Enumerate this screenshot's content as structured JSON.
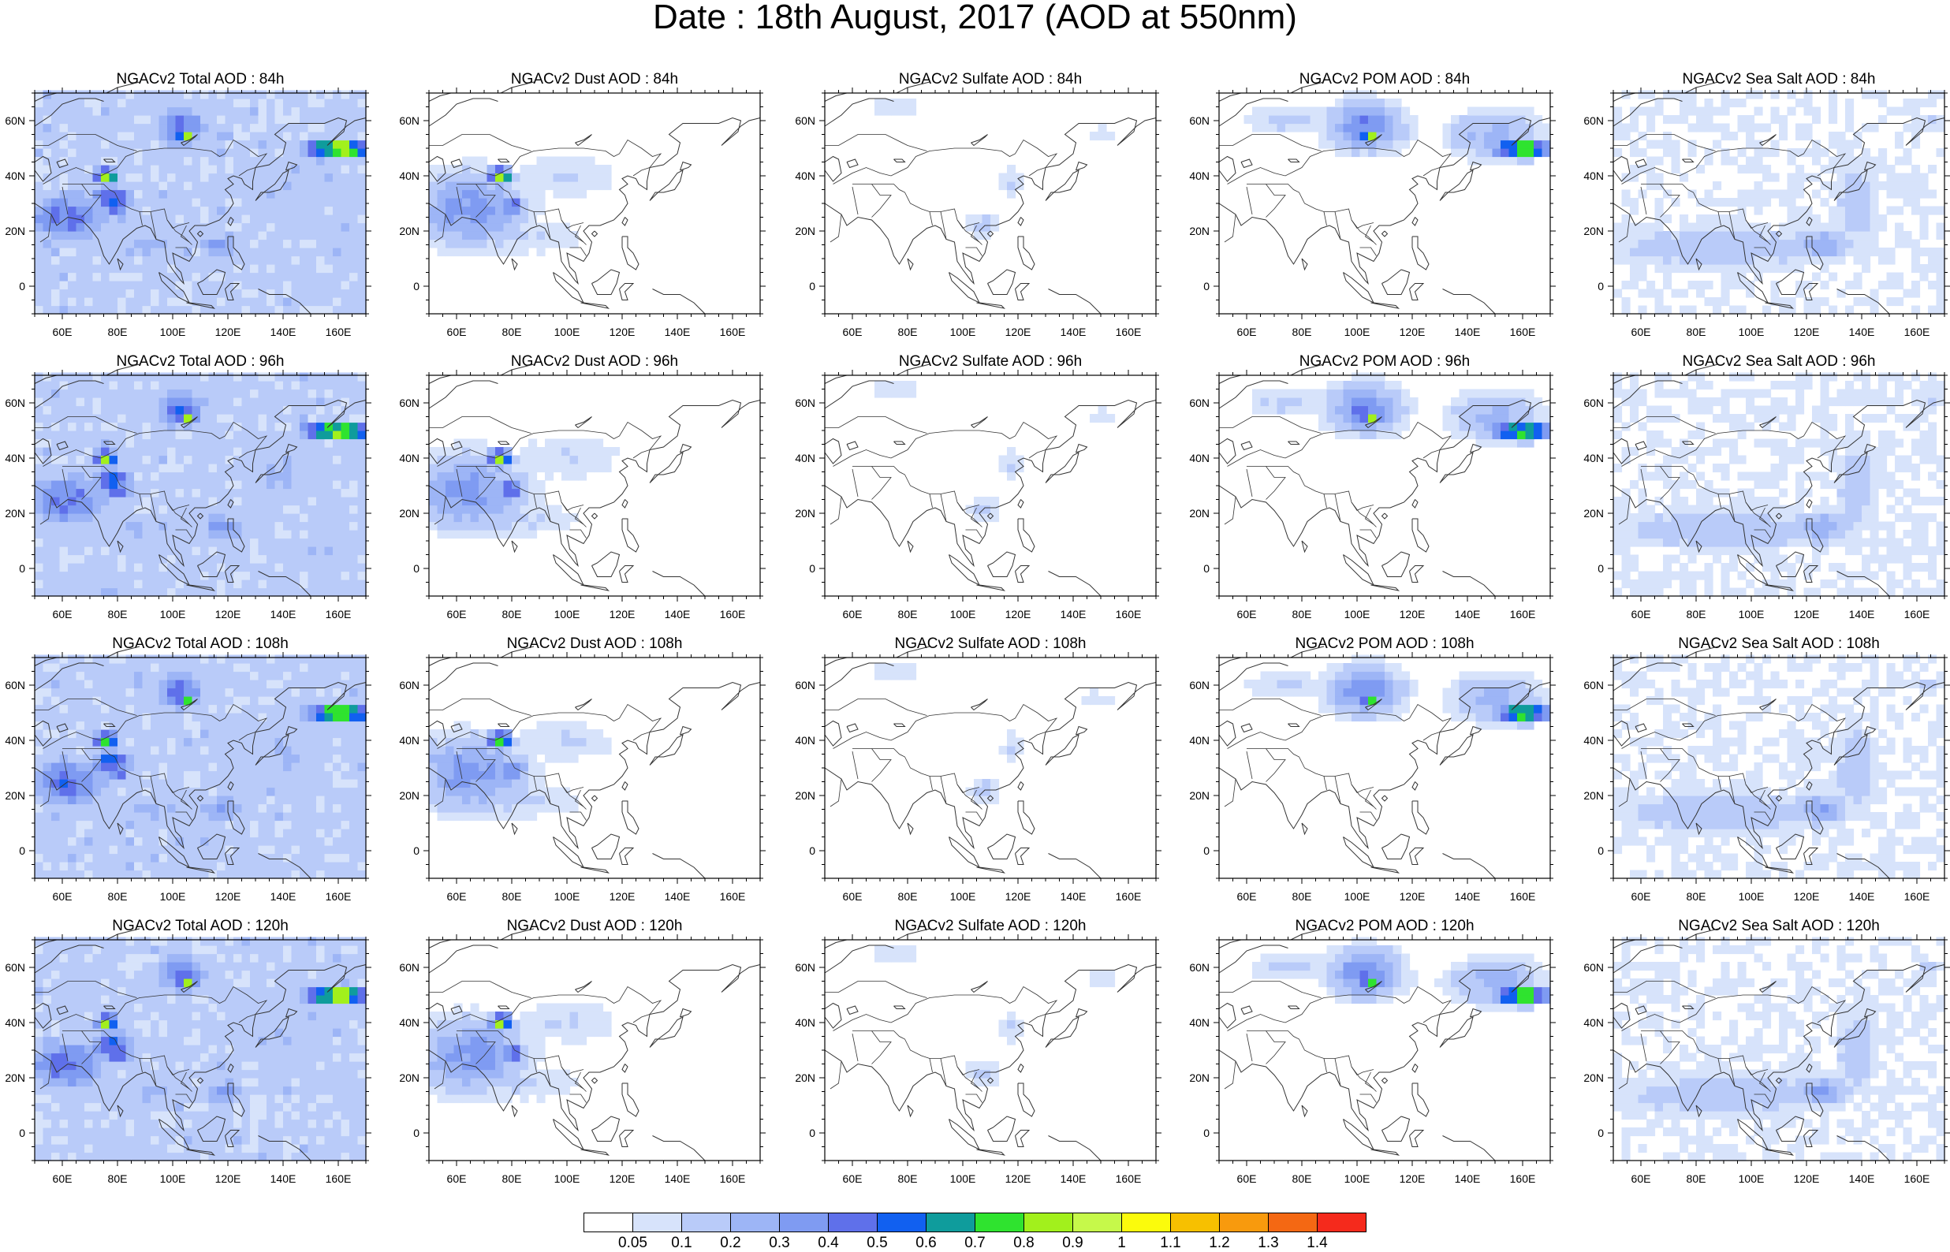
{
  "title": "Date : 18th August, 2017 (AOD at 550nm)",
  "columns": [
    {
      "variable": "Total",
      "base_level": 0.14,
      "colors_key": "total"
    },
    {
      "variable": "Dust",
      "base_level": 0.03,
      "colors_key": "dust"
    },
    {
      "variable": "Sulfate",
      "base_level": 0.01,
      "colors_key": "sulfate"
    },
    {
      "variable": "POM",
      "base_level": 0.02,
      "colors_key": "pom"
    },
    {
      "variable": "Sea Salt",
      "base_level": 0.05,
      "colors_key": "seasalt"
    }
  ],
  "panels": [
    {
      "title": "NGACv2 Total AOD : 84h"
    },
    {
      "title": "NGACv2 Dust AOD : 84h"
    },
    {
      "title": "NGACv2 Sulfate AOD : 84h"
    },
    {
      "title": "NGACv2 POM AOD : 84h"
    },
    {
      "title": "NGACv2 Sea Salt AOD : 84h"
    },
    {
      "title": "NGACv2 Total AOD : 96h"
    },
    {
      "title": "NGACv2 Dust AOD : 96h"
    },
    {
      "title": "NGACv2 Sulfate AOD : 96h"
    },
    {
      "title": "NGACv2 POM AOD : 96h"
    },
    {
      "title": "NGACv2 Sea Salt AOD : 96h"
    },
    {
      "title": "NGACv2 Total AOD : 108h"
    },
    {
      "title": "NGACv2 Dust AOD : 108h"
    },
    {
      "title": "NGACv2 Sulfate AOD : 108h"
    },
    {
      "title": "NGACv2 POM AOD : 108h"
    },
    {
      "title": "NGACv2 Sea Salt AOD : 108h"
    },
    {
      "title": "NGACv2 Total AOD : 120h"
    },
    {
      "title": "NGACv2 Dust AOD : 120h"
    },
    {
      "title": "NGACv2 Sulfate AOD : 120h"
    },
    {
      "title": "NGACv2 POM AOD : 120h"
    },
    {
      "title": "NGACv2 Sea Salt  AOD : 120h"
    }
  ],
  "map": {
    "lon_range": [
      50,
      170
    ],
    "lat_range": [
      -10,
      70
    ],
    "lon_ticks": [
      {
        "value": 60,
        "label": "60E"
      },
      {
        "value": 80,
        "label": "80E"
      },
      {
        "value": 100,
        "label": "100E"
      },
      {
        "value": 120,
        "label": "120E"
      },
      {
        "value": 140,
        "label": "140E"
      },
      {
        "value": 160,
        "label": "160E"
      }
    ],
    "lat_ticks": [
      {
        "value": 60,
        "label": "60N"
      },
      {
        "value": 40,
        "label": "40N"
      },
      {
        "value": 20,
        "label": "20N"
      },
      {
        "value": 0,
        "label": "0"
      }
    ]
  },
  "colorbar": {
    "levels": [
      "0.05",
      "0.1",
      "0.2",
      "0.3",
      "0.4",
      "0.5",
      "0.6",
      "0.7",
      "0.8",
      "0.9",
      "1",
      "1.1",
      "1.2",
      "1.3",
      "1.4"
    ],
    "colors": [
      "#ffffff",
      "#d7e3fb",
      "#b9cbf9",
      "#9db5f6",
      "#7f9bf2",
      "#5f70ea",
      "#1160f0",
      "#0f9c9c",
      "#2fe32f",
      "#a2f01c",
      "#c6f94a",
      "#fbfb0c",
      "#f7c000",
      "#f89a0d",
      "#f46813",
      "#f52a1c"
    ]
  },
  "plumes": {
    "total": [
      {
        "lon": 62,
        "lat": 25,
        "rx": 14,
        "ry": 9,
        "v": 0.45
      },
      {
        "lon": 78,
        "lat": 32,
        "rx": 7,
        "ry": 5,
        "v": 0.55
      },
      {
        "lon": 76,
        "lat": 40,
        "rx": 4,
        "ry": 3,
        "v": 0.85
      },
      {
        "lon": 80,
        "lat": 29,
        "rx": 5,
        "ry": 2,
        "v": 0.75
      },
      {
        "lon": 103,
        "lat": 58,
        "rx": 9,
        "ry": 7,
        "v": 0.45
      },
      {
        "lon": 105,
        "lat": 54,
        "rx": 3,
        "ry": 2,
        "v": 0.95
      },
      {
        "lon": 160,
        "lat": 50,
        "rx": 12,
        "ry": 3,
        "v": 0.95
      },
      {
        "lon": 118,
        "lat": 15,
        "rx": 8,
        "ry": 5,
        "v": 0.35
      },
      {
        "lon": 90,
        "lat": 15,
        "rx": 20,
        "ry": 6,
        "v": 0.22
      },
      {
        "lon": 140,
        "lat": 35,
        "rx": 20,
        "ry": 15,
        "v": 0.2
      }
    ],
    "dust": [
      {
        "lon": 65,
        "lat": 28,
        "rx": 18,
        "ry": 12,
        "v": 0.35
      },
      {
        "lon": 76,
        "lat": 40,
        "rx": 4,
        "ry": 3,
        "v": 0.85
      },
      {
        "lon": 80,
        "lat": 29,
        "rx": 5,
        "ry": 2,
        "v": 0.7
      },
      {
        "lon": 100,
        "lat": 40,
        "rx": 20,
        "ry": 8,
        "v": 0.1
      },
      {
        "lon": 80,
        "lat": 18,
        "rx": 25,
        "ry": 6,
        "v": 0.12
      }
    ],
    "sulfate": [
      {
        "lon": 108,
        "lat": 22,
        "rx": 6,
        "ry": 5,
        "v": 0.12
      },
      {
        "lon": 118,
        "lat": 38,
        "rx": 4,
        "ry": 5,
        "v": 0.12
      },
      {
        "lon": 75,
        "lat": 65,
        "rx": 10,
        "ry": 3,
        "v": 0.1
      },
      {
        "lon": 150,
        "lat": 55,
        "rx": 8,
        "ry": 4,
        "v": 0.08
      }
    ],
    "pom": [
      {
        "lon": 103,
        "lat": 58,
        "rx": 12,
        "ry": 8,
        "v": 0.4
      },
      {
        "lon": 105,
        "lat": 54,
        "rx": 3,
        "ry": 2,
        "v": 0.9
      },
      {
        "lon": 160,
        "lat": 50,
        "rx": 10,
        "ry": 3,
        "v": 0.85
      },
      {
        "lon": 150,
        "lat": 55,
        "rx": 15,
        "ry": 8,
        "v": 0.25
      },
      {
        "lon": 75,
        "lat": 60,
        "rx": 15,
        "ry": 5,
        "v": 0.12
      }
    ],
    "seasalt": [
      {
        "lon": 90,
        "lat": 14,
        "rx": 40,
        "ry": 7,
        "v": 0.18
      },
      {
        "lon": 125,
        "lat": 15,
        "rx": 10,
        "ry": 5,
        "v": 0.3
      },
      {
        "lon": 138,
        "lat": 30,
        "rx": 7,
        "ry": 15,
        "v": 0.18
      },
      {
        "lon": 165,
        "lat": 60,
        "rx": 4,
        "ry": 3,
        "v": 0.15
      }
    ]
  }
}
